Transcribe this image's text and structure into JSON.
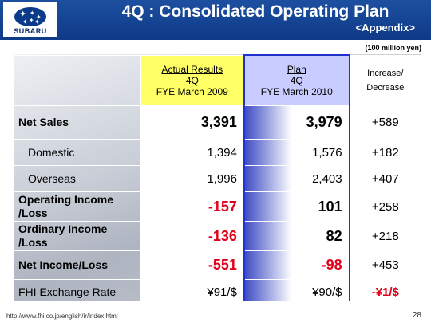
{
  "header": {
    "title": "4Q : Consolidated Operating Plan",
    "subtitle": "<Appendix>",
    "logo_text": "SUBARU"
  },
  "unit_note": "(100 million yen)",
  "columns": {
    "actual": {
      "line1": "Actual Results",
      "line2": "4Q",
      "line3": "FYE March 2009"
    },
    "plan": {
      "line1": "Plan",
      "line2": "4Q",
      "line3": "FYE March 2010"
    },
    "increase": {
      "line1": "Increase/",
      "line2": "Decrease"
    }
  },
  "rows": [
    {
      "label": "Net Sales",
      "actual": "3,391",
      "plan": "3,979",
      "change": "+589"
    },
    {
      "label": "Domestic",
      "actual": "1,394",
      "plan": "1,576",
      "change": "+182"
    },
    {
      "label": "Overseas",
      "actual": "1,996",
      "plan": "2,403",
      "change": "+407"
    },
    {
      "label1": "Operating Income",
      "label2": "/Loss",
      "actual": "-157",
      "plan": "101",
      "change": "+258"
    },
    {
      "label1": "Ordinary Income",
      "label2": "/Loss",
      "actual": "-136",
      "plan": "82",
      "change": "+218"
    },
    {
      "label": "Net Income/Loss",
      "actual": "-551",
      "plan": "-98",
      "change": "+453"
    },
    {
      "label": "FHI Exchange Rate",
      "actual": "¥91/$",
      "plan": "¥90/$",
      "change": "-¥1/$"
    }
  ],
  "footer": {
    "url": "http://www.fhi.co.jp/english/ir/index.html",
    "page": "28"
  },
  "colors": {
    "header_bg": "#0e3a88",
    "actual_header_bg": "#ffff66",
    "plan_header_bg": "#c9ccff",
    "plan_border": "#2233cc",
    "negative_red": "#e1001a"
  }
}
